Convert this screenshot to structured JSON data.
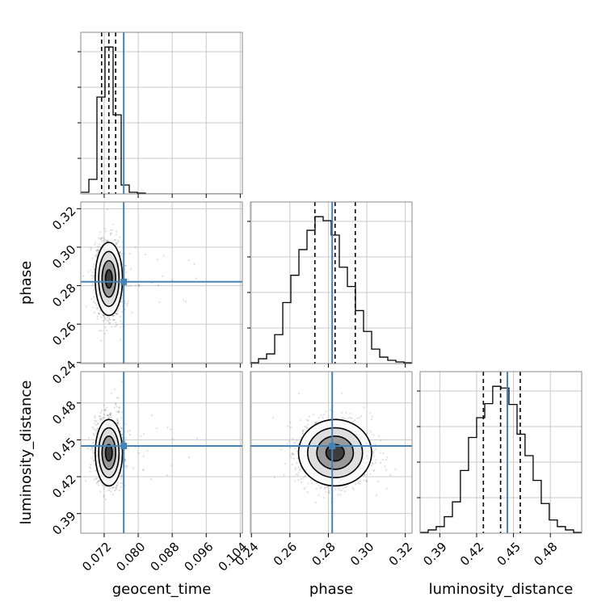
{
  "chart_data": {
    "type": "corner",
    "parameters": [
      "geocent_time",
      "phase",
      "luminosity_distance"
    ],
    "truth": {
      "geocent_time": 0.0766,
      "phase": 0.282,
      "luminosity_distance": 0.445
    },
    "ranges": {
      "geocent_time": [
        0.0665,
        0.1045
      ],
      "phase": [
        0.2395,
        0.3235
      ],
      "luminosity_distance": [
        0.374,
        0.5055
      ]
    },
    "ticks": {
      "geocent_time": [
        0.072,
        0.08,
        0.088,
        0.096,
        0.104
      ],
      "phase": [
        0.24,
        0.26,
        0.28,
        0.3,
        0.32
      ],
      "luminosity_distance": [
        0.39,
        0.42,
        0.45,
        0.48
      ]
    },
    "tick_labels": {
      "geocent_time": [
        "0.072",
        "0.080",
        "0.088",
        "0.096",
        "0.104"
      ],
      "phase": [
        "0.24",
        "0.26",
        "0.28",
        "0.30",
        "0.32"
      ],
      "luminosity_distance": [
        "0.39",
        "0.42",
        "0.45",
        "0.48"
      ]
    },
    "quantiles": {
      "geocent_time": [
        0.0714,
        0.0731,
        0.0747
      ],
      "phase": [
        0.273,
        0.2835,
        0.294
      ],
      "luminosity_distance": [
        0.4255,
        0.4395,
        0.4555
      ]
    },
    "posterior": {
      "geocent_time": {
        "mean": 0.0731,
        "sd": 0.0016
      },
      "phase": {
        "mean": 0.2835,
        "sd": 0.0095
      },
      "luminosity_distance": {
        "mean": 0.4395,
        "sd": 0.0135
      }
    },
    "histograms": {
      "geocent_time": {
        "edges": [
          0.0665,
          0.0684,
          0.0703,
          0.0722,
          0.0741,
          0.076,
          0.0779,
          0.0798,
          0.0817,
          0.0836,
          0.0855,
          0.0874,
          0.0893,
          0.0912,
          0.0931,
          0.095,
          0.0969,
          0.0988,
          0.1007,
          0.1026,
          0.1045
        ],
        "counts": [
          2,
          18,
          120,
          182,
          98,
          11,
          2,
          1,
          0,
          0,
          0,
          0,
          0,
          0,
          0,
          0,
          0,
          0,
          0,
          0
        ]
      },
      "phase": {
        "edges": [
          0.2395,
          0.2437,
          0.2479,
          0.2521,
          0.2563,
          0.2605,
          0.2647,
          0.2689,
          0.2731,
          0.2773,
          0.2815,
          0.2857,
          0.2899,
          0.2941,
          0.2983,
          0.3025,
          0.3067,
          0.3109,
          0.3151,
          0.3193,
          0.3235
        ],
        "counts": [
          1,
          6,
          12,
          36,
          76,
          110,
          142,
          166,
          183,
          178,
          160,
          120,
          96,
          66,
          40,
          18,
          8,
          4,
          2,
          1
        ]
      },
      "luminosity_distance": {
        "edges": [
          0.374,
          0.3806,
          0.3871,
          0.3937,
          0.4003,
          0.4068,
          0.4134,
          0.42,
          0.4266,
          0.4331,
          0.4397,
          0.4463,
          0.4529,
          0.4594,
          0.466,
          0.4726,
          0.4791,
          0.4857,
          0.4923,
          0.4989,
          0.5055
        ],
        "counts": [
          1,
          4,
          8,
          20,
          38,
          76,
          116,
          140,
          157,
          178,
          176,
          156,
          120,
          94,
          64,
          36,
          16,
          8,
          4,
          1
        ]
      }
    },
    "contour_levels_sigma": [
      0.5,
      1.0,
      1.5,
      2.0
    ],
    "quantile_lines": "dashed",
    "truth_color": "#4682b4",
    "grid": true
  }
}
